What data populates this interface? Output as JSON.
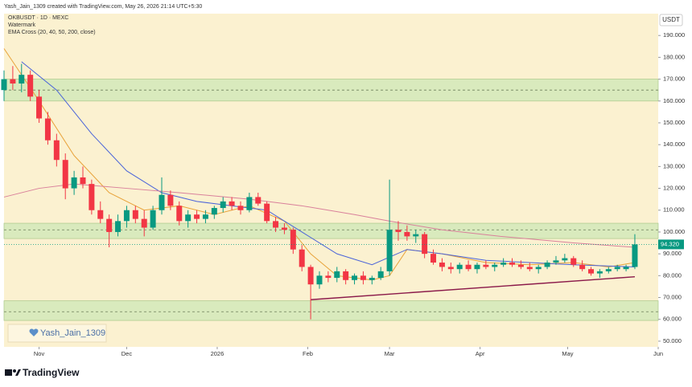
{
  "header": {
    "credit": "Yash_Jain_1309 created with TradingView.com, May 26, 2026 21:14 UTC+5:30",
    "symbol": "OKBUSDT · 1D · MEXC",
    "indicator_1": "Watermark",
    "indicator_2": "EMA Cross (20, 40, 50, 200, close)",
    "watermark": "Yash_Jain_1309",
    "logo": "TradingView"
  },
  "chart_data": {
    "type": "candlestick",
    "currency": "USDT",
    "x": [
      0,
      3,
      6,
      9,
      12,
      15,
      18,
      21,
      24,
      27,
      30,
      33,
      36,
      39,
      42,
      45,
      48,
      51,
      54,
      57,
      60,
      63,
      66,
      69,
      72,
      75,
      78,
      81,
      84,
      87,
      90,
      93,
      96,
      99,
      102,
      105,
      108,
      111,
      114,
      117,
      120,
      123,
      126,
      129,
      132,
      135,
      138,
      141,
      144,
      147,
      150,
      153,
      156,
      159,
      162,
      165,
      168,
      171,
      174,
      177,
      180,
      183,
      186,
      189,
      192,
      195,
      198,
      201,
      204,
      207,
      210,
      213,
      216
    ],
    "open": [
      165,
      170,
      168,
      172,
      162,
      152,
      142,
      133,
      120,
      125,
      122,
      110,
      106,
      100,
      105,
      110,
      106,
      102,
      110,
      117,
      112,
      105,
      108,
      106,
      108,
      111,
      114,
      112,
      110,
      116,
      113,
      105,
      102,
      101,
      92,
      84,
      76,
      80,
      79,
      82,
      78,
      80,
      78,
      79,
      82,
      101,
      100,
      98,
      99,
      90,
      86,
      84,
      83,
      85,
      83,
      85,
      84,
      85,
      86,
      85,
      84,
      83,
      84,
      86,
      87,
      88,
      85,
      83,
      81,
      82,
      83,
      83,
      84
    ],
    "high": [
      174,
      176,
      177,
      174,
      165,
      155,
      145,
      136,
      128,
      130,
      124,
      114,
      108,
      108,
      112,
      112,
      110,
      112,
      125,
      119,
      114,
      110,
      110,
      110,
      112,
      116,
      116,
      114,
      118,
      118,
      114,
      107,
      104,
      102,
      94,
      85,
      82,
      82,
      84,
      83,
      81,
      82,
      80,
      84,
      124,
      105,
      103,
      101,
      100,
      92,
      88,
      86,
      86,
      87,
      86,
      87,
      86,
      88,
      88,
      87,
      86,
      85,
      87,
      89,
      90,
      89,
      87,
      84,
      83,
      84,
      85,
      85,
      99
    ],
    "low": [
      160,
      165,
      164,
      160,
      150,
      140,
      130,
      115,
      117,
      120,
      108,
      104,
      93,
      98,
      102,
      104,
      98,
      101,
      108,
      110,
      103,
      102,
      104,
      104,
      106,
      109,
      110,
      108,
      109,
      112,
      104,
      100,
      99,
      90,
      82,
      60,
      74,
      77,
      77,
      76,
      76,
      76,
      76,
      78,
      80,
      96,
      96,
      95,
      88,
      85,
      82,
      81,
      81,
      82,
      81,
      83,
      82,
      84,
      84,
      83,
      82,
      81,
      83,
      85,
      86,
      84,
      82,
      80,
      79,
      81,
      82,
      82,
      83
    ],
    "close": [
      170,
      168,
      172,
      162,
      152,
      142,
      133,
      120,
      125,
      122,
      110,
      106,
      100,
      105,
      110,
      106,
      102,
      110,
      117,
      112,
      105,
      108,
      106,
      108,
      111,
      114,
      112,
      110,
      116,
      113,
      105,
      102,
      101,
      92,
      84,
      76,
      80,
      79,
      82,
      78,
      80,
      78,
      79,
      82,
      101,
      100,
      98,
      99,
      90,
      86,
      84,
      83,
      85,
      83,
      85,
      84,
      85,
      86,
      85,
      84,
      83,
      84,
      86,
      87,
      88,
      85,
      83,
      81,
      82,
      83,
      84,
      84,
      94.32
    ],
    "up_color": "#089981",
    "down_color": "#f23645",
    "lines": [
      {
        "color": "#e8a33a",
        "x": [
          0,
          12,
          24,
          36,
          48,
          60,
          72,
          84,
          96,
          105,
          114,
          126,
          132,
          138,
          150,
          165,
          180,
          195,
          207,
          216
        ],
        "values": [
          184,
          160,
          135,
          118,
          110,
          112,
          108,
          112,
          105,
          90,
          80,
          78,
          80,
          92,
          90,
          86,
          85,
          86,
          84,
          86
        ]
      },
      {
        "color": "#4a63d9",
        "x": [
          6,
          18,
          30,
          42,
          54,
          66,
          78,
          90,
          102,
          114,
          126,
          138,
          150,
          165,
          180,
          195,
          216
        ],
        "values": [
          178,
          165,
          145,
          128,
          118,
          114,
          112,
          110,
          100,
          90,
          85,
          92,
          90,
          87,
          86,
          85,
          84
        ]
      },
      {
        "color": "#d9809b",
        "x": [
          0,
          12,
          24,
          42,
          60,
          84,
          102,
          120,
          132,
          150,
          170,
          195,
          216
        ],
        "values": [
          116,
          120,
          122,
          120,
          118,
          115,
          112,
          108,
          105,
          101,
          98,
          95,
          93
        ]
      }
    ],
    "trendline": {
      "color": "#8b1a4a",
      "x": [
        105,
        216
      ],
      "values": [
        69,
        79.5
      ]
    },
    "zones": [
      {
        "from": 160,
        "to": 170,
        "mid": 165
      },
      {
        "from": 97,
        "to": 104,
        "mid": 101
      },
      {
        "from": 59.5,
        "to": 68.5,
        "mid": 63.5
      }
    ],
    "last_price_label": "94.320",
    "xlim": [
      0,
      224
    ],
    "xticks": [
      {
        "value": 12,
        "label": "Nov"
      },
      {
        "value": 42,
        "label": "Dec"
      },
      {
        "value": 73,
        "label": "2026"
      },
      {
        "value": 104,
        "label": "Feb"
      },
      {
        "value": 132,
        "label": "Mar"
      },
      {
        "value": 163,
        "label": "Apr"
      },
      {
        "value": 193,
        "label": "May"
      },
      {
        "value": 224,
        "label": "Jun"
      }
    ],
    "ylim": [
      47.4,
      200
    ],
    "yticks": [
      {
        "value": 50,
        "label": "50.000"
      },
      {
        "value": 60,
        "label": "60.000"
      },
      {
        "value": 70,
        "label": "70.000"
      },
      {
        "value": 80,
        "label": "80.000"
      },
      {
        "value": 90,
        "label": "90.000"
      },
      {
        "value": 100,
        "label": "100.000"
      },
      {
        "value": 110,
        "label": "110.000"
      },
      {
        "value": 120,
        "label": "120.000"
      },
      {
        "value": 130,
        "label": "130.000"
      },
      {
        "value": 140,
        "label": "140.000"
      },
      {
        "value": 150,
        "label": "150.000"
      },
      {
        "value": 160,
        "label": "160.000"
      },
      {
        "value": 170,
        "label": "170.000"
      },
      {
        "value": 180,
        "label": "180.000"
      },
      {
        "value": 190,
        "label": "190.000"
      }
    ]
  }
}
